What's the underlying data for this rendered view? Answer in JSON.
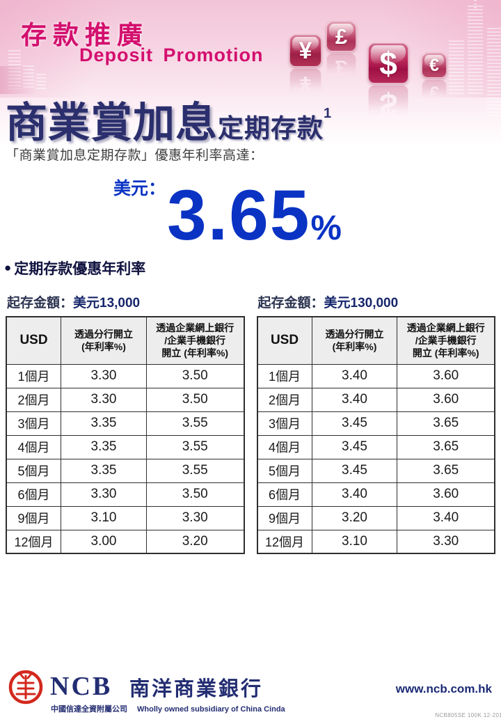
{
  "banner": {
    "title_zh": "存款推廣",
    "title_en": "Deposit Promotion",
    "currency_icons": [
      {
        "name": "yen-icon",
        "symbol": "¥"
      },
      {
        "name": "pound-icon",
        "symbol": "£"
      },
      {
        "name": "dollar-icon",
        "symbol": "$"
      },
      {
        "name": "euro-icon",
        "symbol": "€"
      }
    ]
  },
  "headline": {
    "main": "商業賞加息",
    "sub": "定期存款",
    "footnote": "1",
    "description": "「商業賞加息定期存款」優惠年利率高達："
  },
  "rate_highlight": {
    "currency_label": "美元：",
    "rate": "3.65",
    "percent": "%"
  },
  "section_heading": {
    "bullet": "●",
    "text": "定期存款優惠年利率"
  },
  "tables": [
    {
      "caption_label": "起存金額：",
      "caption_value": "美元13,000",
      "headers": [
        "USD",
        "透過分行開立\n(年利率%)",
        "透過企業網上銀行\n/企業手機銀行\n開立 (年利率%)"
      ],
      "rows": [
        [
          "1個月",
          "3.30",
          "3.50"
        ],
        [
          "2個月",
          "3.30",
          "3.50"
        ],
        [
          "3個月",
          "3.35",
          "3.55"
        ],
        [
          "4個月",
          "3.35",
          "3.55"
        ],
        [
          "5個月",
          "3.35",
          "3.55"
        ],
        [
          "6個月",
          "3.30",
          "3.50"
        ],
        [
          "9個月",
          "3.10",
          "3.30"
        ],
        [
          "12個月",
          "3.00",
          "3.20"
        ]
      ]
    },
    {
      "caption_label": "起存金額：",
      "caption_value": "美元130,000",
      "headers": [
        "USD",
        "透過分行開立\n(年利率%)",
        "透過企業網上銀行\n/企業手機銀行\n開立 (年利率%)"
      ],
      "rows": [
        [
          "1個月",
          "3.40",
          "3.60"
        ],
        [
          "2個月",
          "3.40",
          "3.60"
        ],
        [
          "3個月",
          "3.45",
          "3.65"
        ],
        [
          "4個月",
          "3.45",
          "3.65"
        ],
        [
          "5個月",
          "3.45",
          "3.65"
        ],
        [
          "6個月",
          "3.40",
          "3.60"
        ],
        [
          "9個月",
          "3.20",
          "3.40"
        ],
        [
          "12個月",
          "3.10",
          "3.30"
        ]
      ]
    }
  ],
  "footer": {
    "bank_abbr": "NCB",
    "bank_name_zh": "南洋商業銀行",
    "subsidiary_zh": "中國信達全資附屬公司",
    "subsidiary_en": "Wholly owned subsidiary of China Cinda",
    "website": "www.ncb.com.hk",
    "print_code": "NCB805SE 100K 12-2016"
  },
  "colors": {
    "brand_magenta": "#d30f6e",
    "headline_navy": "#2b2f6d",
    "rate_blue": "#0a33c4",
    "seal_red": "#d3281c",
    "footer_navy": "#232d72",
    "banner_pink": "#f2c4d7",
    "table_header_bg": "#ededed"
  }
}
